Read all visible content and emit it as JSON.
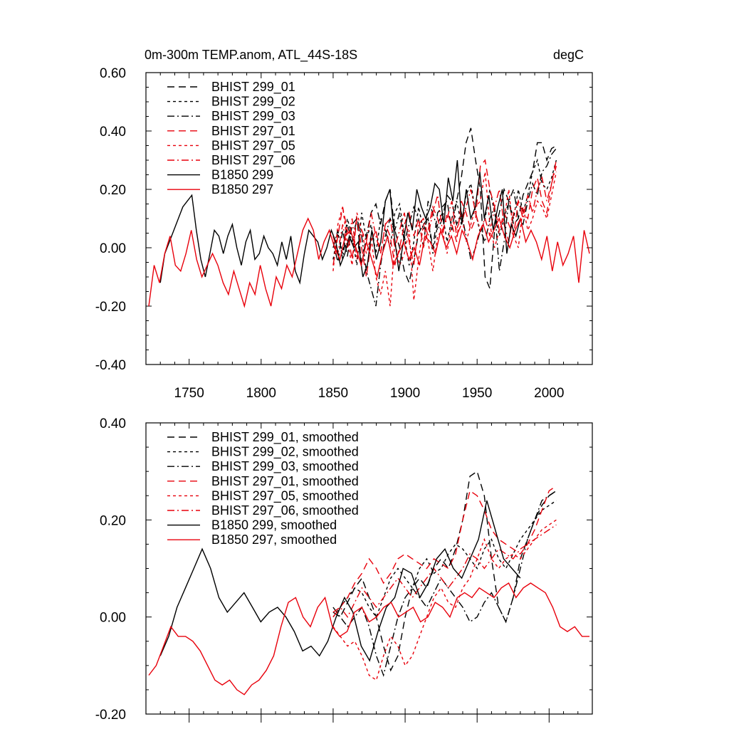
{
  "chart_data": [
    {
      "type": "line",
      "title_left": "0m-300m TEMP.anom, ATL_44S-18S",
      "title_right": "degC",
      "xlim": [
        1720,
        2030
      ],
      "ylim": [
        -0.4,
        0.6
      ],
      "yticks": [
        "0.60",
        "0.40",
        "0.20",
        "0.00",
        "-0.20",
        "-0.40"
      ],
      "xticks": [
        "1750",
        "1800",
        "1850",
        "1900",
        "1950",
        "2000"
      ],
      "series": [
        {
          "name": "BHIST 299_01",
          "color": "#000000",
          "dash": "10,6",
          "start": 1850,
          "end": 2005,
          "values": [
            0.02,
            -0.05,
            0.06,
            -0.03,
            0.08,
            0.1,
            -0.06,
            0.04,
            0.12,
            0.15,
            0.08,
            0.16,
            0.2,
            0.06,
            0.0,
            -0.08,
            -0.12,
            -0.04,
            0.05,
            0.08,
            0.1,
            0.0,
            0.12,
            0.14,
            0.16,
            0.06,
            0.16,
            0.24,
            0.36,
            0.41,
            0.3,
            0.2,
            -0.1,
            -0.14,
            0.06,
            0.12,
            0.2,
            0.16,
            0.08,
            0.1,
            0.18,
            0.22,
            0.26,
            0.36,
            0.36,
            0.3,
            0.34,
            0.35
          ]
        },
        {
          "name": "BHIST 299_02",
          "color": "#000000",
          "dash": "4,4",
          "start": 1850,
          "end": 2005,
          "values": [
            -0.04,
            0.05,
            -0.02,
            0.1,
            0.04,
            -0.06,
            0.12,
            0.03,
            0.08,
            -0.02,
            0.1,
            0.06,
            0.0,
            0.12,
            0.15,
            0.04,
            -0.06,
            0.02,
            0.14,
            0.06,
            0.1,
            -0.02,
            0.08,
            0.12,
            0.02,
            0.1,
            0.16,
            0.08,
            0.18,
            0.22,
            0.12,
            0.05,
            0.1,
            0.2,
            0.12,
            0.04,
            0.1,
            0.16,
            0.1,
            0.2,
            0.12,
            0.18,
            0.26,
            0.3,
            0.22,
            0.2,
            0.24,
            0.3
          ]
        },
        {
          "name": "BHIST 299_03",
          "color": "#000000",
          "dash": "10,4,2,4",
          "start": 1850,
          "end": 2005,
          "values": [
            0.0,
            0.06,
            -0.04,
            0.08,
            0.02,
            0.1,
            0.04,
            -0.08,
            -0.14,
            -0.2,
            -0.06,
            0.04,
            0.1,
            0.06,
            0.12,
            0.02,
            0.08,
            0.14,
            0.1,
            0.0,
            0.16,
            0.12,
            0.06,
            0.1,
            0.18,
            0.16,
            0.08,
            0.12,
            0.04,
            -0.04,
            0.0,
            0.06,
            0.02,
            0.1,
            0.14,
            -0.08,
            0.02,
            0.16,
            0.2,
            0.1,
            0.08,
            0.16,
            0.22,
            0.18,
            0.26,
            0.28,
            0.32,
            0.34
          ]
        },
        {
          "name": "BHIST 297_01",
          "color": "#e8000b",
          "dash": "10,6",
          "start": 1850,
          "end": 2005,
          "values": [
            -0.06,
            0.04,
            0.14,
            0.06,
            -0.04,
            0.1,
            0.0,
            -0.1,
            0.02,
            0.06,
            -0.02,
            0.08,
            0.04,
            -0.06,
            0.0,
            0.08,
            0.12,
            0.04,
            0.1,
            0.0,
            0.06,
            0.14,
            0.1,
            0.04,
            0.12,
            0.08,
            0.02,
            0.16,
            0.12,
            0.06,
            0.1,
            0.28,
            0.3,
            0.2,
            0.14,
            0.06,
            0.12,
            0.08,
            0.04,
            0.16,
            0.12,
            0.1,
            0.2,
            0.24,
            0.16,
            0.12,
            0.22,
            0.3
          ]
        },
        {
          "name": "BHIST 297_05",
          "color": "#e8000b",
          "dash": "4,4",
          "start": 1850,
          "end": 2005,
          "values": [
            -0.08,
            0.08,
            0.14,
            0.02,
            -0.06,
            0.12,
            0.06,
            -0.02,
            0.04,
            -0.1,
            -0.16,
            -0.08,
            -0.2,
            0.02,
            -0.06,
            -0.02,
            0.06,
            -0.18,
            -0.04,
            0.08,
            0.02,
            -0.08,
            0.04,
            0.06,
            -0.02,
            0.1,
            0.06,
            0.12,
            0.02,
            0.08,
            0.14,
            0.16,
            0.26,
            0.08,
            0.0,
            0.06,
            0.1,
            0.2,
            0.04,
            0.0,
            0.14,
            0.06,
            0.1,
            0.16,
            0.14,
            0.1,
            0.18,
            0.26
          ]
        },
        {
          "name": "BHIST 297_06",
          "color": "#e8000b",
          "dash": "10,4,2,4",
          "start": 1850,
          "end": 2005,
          "values": [
            0.04,
            -0.02,
            0.08,
            0.0,
            0.1,
            -0.04,
            0.06,
            0.02,
            0.12,
            0.04,
            -0.02,
            0.08,
            0.1,
            0.0,
            0.06,
            0.12,
            0.02,
            -0.06,
            0.08,
            0.1,
            0.04,
            0.12,
            0.18,
            0.06,
            0.1,
            0.16,
            0.04,
            0.08,
            0.14,
            0.2,
            0.12,
            0.06,
            0.1,
            0.04,
            0.14,
            0.2,
            0.08,
            0.02,
            0.12,
            0.16,
            0.1,
            0.18,
            0.12,
            0.2,
            0.24,
            0.16,
            0.22,
            0.28
          ]
        },
        {
          "name": "B1850 299",
          "color": "#000000",
          "dash": "",
          "start": 1730,
          "end": 1980,
          "values": [
            -0.12,
            -0.02,
            0.02,
            0.06,
            0.1,
            0.14,
            0.16,
            0.18,
            0.06,
            -0.04,
            -0.1,
            -0.02,
            0.06,
            0.04,
            -0.02,
            0.04,
            0.08,
            0.0,
            -0.06,
            0.02,
            0.06,
            -0.04,
            -0.02,
            0.04,
            0.0,
            -0.02,
            -0.06,
            0.02,
            -0.04,
            0.04,
            -0.08,
            -0.12,
            -0.02,
            0.06,
            0.04,
            0.02,
            -0.04,
            0.0,
            0.06,
            0.02,
            -0.06,
            -0.02,
            0.04,
            0.0,
            0.02,
            -0.1,
            -0.06,
            0.06,
            -0.04,
            0.02,
            0.16,
            0.2,
            0.04,
            -0.08,
            0.02,
            0.12,
            0.06,
            0.2,
            0.14,
            0.1,
            0.14,
            0.22,
            0.2,
            0.08,
            0.24,
            0.16,
            0.3,
            0.08,
            0.2,
            0.1,
            0.14,
            0.26,
            0.1,
            0.18,
            0.06,
            0.14,
            0.2,
            -0.02,
            0.08,
            0.04,
            0.1
          ]
        },
        {
          "name": "B1850 297",
          "color": "#e8000b",
          "dash": "",
          "start": 1722,
          "end": 2028,
          "values": [
            -0.2,
            -0.06,
            -0.12,
            -0.02,
            0.04,
            -0.06,
            -0.08,
            -0.02,
            0.06,
            -0.04,
            -0.1,
            -0.06,
            -0.02,
            -0.06,
            -0.12,
            -0.16,
            -0.08,
            -0.14,
            -0.2,
            -0.12,
            -0.16,
            -0.06,
            -0.14,
            -0.2,
            -0.1,
            -0.14,
            -0.06,
            -0.1,
            -0.02,
            0.06,
            0.1,
            0.06,
            -0.04,
            0.02,
            0.06,
            0.0,
            -0.04,
            0.04,
            0.06,
            0.0,
            -0.06,
            0.02,
            -0.04,
            -0.1,
            -0.02,
            0.04,
            -0.06,
            -0.02,
            0.02,
            -0.04,
            0.0,
            -0.06,
            0.04,
            0.02,
            -0.02,
            0.06,
            0.0,
            0.04,
            -0.02,
            0.06,
            0.02,
            -0.04,
            0.04,
            0.08,
            0.02,
            0.06,
            0.1,
            0.04,
            0.0,
            0.06,
            0.1,
            0.02,
            0.06,
            0.02,
            -0.04,
            0.04,
            -0.08,
            0.02,
            -0.06,
            -0.02,
            0.04,
            -0.12,
            0.06,
            -0.02
          ]
        }
      ]
    },
    {
      "type": "line",
      "xlim": [
        1720,
        2030
      ],
      "ylim": [
        -0.2,
        0.4
      ],
      "yticks": [
        "0.40",
        "0.20",
        "0.00",
        "-0.20"
      ],
      "series": [
        {
          "name": "BHIST 299_01, smoothed",
          "color": "#000000",
          "dash": "10,6",
          "start": 1850,
          "end": 2005,
          "values": [
            0.01,
            0.0,
            0.03,
            0.06,
            0.08,
            0.04,
            0.0,
            -0.06,
            -0.11,
            -0.08,
            0.0,
            0.06,
            0.08,
            0.06,
            0.1,
            0.12,
            0.1,
            0.14,
            0.2,
            0.29,
            0.3,
            0.25,
            0.12,
            0.02,
            -0.01,
            0.04,
            0.12,
            0.16,
            0.2,
            0.23,
            0.25,
            0.26
          ]
        },
        {
          "name": "BHIST 299_02, smoothed",
          "color": "#000000",
          "dash": "4,4",
          "start": 1850,
          "end": 2005,
          "values": [
            0.0,
            0.02,
            0.04,
            0.06,
            0.05,
            0.02,
            0.0,
            0.04,
            0.08,
            0.1,
            0.08,
            0.06,
            0.1,
            0.12,
            0.09,
            0.1,
            0.13,
            0.15,
            0.14,
            0.12,
            0.1,
            0.14,
            0.16,
            0.12,
            0.1,
            0.13,
            0.16,
            0.18,
            0.2,
            0.22,
            0.23,
            0.24
          ]
        },
        {
          "name": "BHIST 299_03, smoothed",
          "color": "#000000",
          "dash": "10,4,2,4",
          "start": 1850,
          "end": 2005,
          "values": [
            0.02,
            0.0,
            -0.02,
            0.0,
            0.02,
            -0.02,
            -0.08,
            -0.12,
            -0.06,
            0.0,
            0.04,
            0.06,
            0.04,
            0.02,
            0.05,
            0.08,
            0.06,
            0.04,
            0.02,
            -0.01,
            0.0,
            0.03,
            0.05,
            0.02,
            -0.01,
            0.04,
            0.1,
            0.16,
            0.2,
            0.24,
            0.25,
            0.26
          ]
        },
        {
          "name": "BHIST 297_01, smoothed",
          "color": "#e8000b",
          "dash": "10,6",
          "start": 1850,
          "end": 2005,
          "values": [
            0.0,
            0.02,
            0.04,
            0.07,
            0.09,
            0.12,
            0.1,
            0.07,
            0.09,
            0.12,
            0.13,
            0.12,
            0.11,
            0.1,
            0.12,
            0.11,
            0.1,
            0.13,
            0.2,
            0.26,
            0.25,
            0.22,
            0.18,
            0.16,
            0.15,
            0.14,
            0.13,
            0.15,
            0.18,
            0.22,
            0.26,
            0.27
          ]
        },
        {
          "name": "BHIST 297_05, smoothed",
          "color": "#e8000b",
          "dash": "4,4",
          "start": 1850,
          "end": 2005,
          "values": [
            -0.02,
            -0.04,
            -0.06,
            -0.05,
            -0.08,
            -0.12,
            -0.13,
            -0.08,
            -0.04,
            -0.06,
            -0.1,
            -0.08,
            -0.04,
            0.0,
            0.04,
            0.06,
            0.03,
            0.02,
            0.06,
            0.08,
            0.12,
            0.16,
            0.12,
            0.1,
            0.12,
            0.13,
            0.12,
            0.14,
            0.16,
            0.18,
            0.19,
            0.2
          ]
        },
        {
          "name": "BHIST 297_06, smoothed",
          "color": "#e8000b",
          "dash": "10,4,2,4",
          "start": 1850,
          "end": 2005,
          "values": [
            0.01,
            0.02,
            0.0,
            0.03,
            0.06,
            0.04,
            0.02,
            0.04,
            0.06,
            0.08,
            0.06,
            0.04,
            0.06,
            0.08,
            0.1,
            0.08,
            0.06,
            0.08,
            0.1,
            0.13,
            0.12,
            0.1,
            0.12,
            0.14,
            0.13,
            0.12,
            0.14,
            0.15,
            0.16,
            0.17,
            0.18,
            0.19
          ]
        },
        {
          "name": "B1850 299, smoothed",
          "color": "#000000",
          "dash": "",
          "start": 1730,
          "end": 1980,
          "values": [
            -0.08,
            -0.04,
            0.02,
            0.06,
            0.1,
            0.14,
            0.1,
            0.04,
            0.01,
            0.03,
            0.05,
            0.02,
            -0.01,
            0.01,
            0.02,
            0.0,
            -0.03,
            -0.07,
            -0.06,
            -0.08,
            -0.05,
            0.0,
            0.04,
            0.01,
            -0.06,
            -0.09,
            -0.03,
            0.02,
            0.04,
            0.1,
            0.09,
            0.04,
            0.07,
            0.12,
            0.14,
            0.1,
            0.08,
            0.12,
            0.16,
            0.24,
            0.18,
            0.12,
            0.1,
            0.08
          ]
        },
        {
          "name": "B1850 297, smoothed",
          "color": "#e8000b",
          "dash": "",
          "start": 1722,
          "end": 2028,
          "values": [
            -0.12,
            -0.1,
            -0.06,
            -0.02,
            -0.04,
            -0.04,
            -0.05,
            -0.07,
            -0.1,
            -0.13,
            -0.14,
            -0.13,
            -0.15,
            -0.16,
            -0.14,
            -0.13,
            -0.11,
            -0.08,
            -0.02,
            0.03,
            0.04,
            0.0,
            -0.02,
            0.02,
            0.04,
            -0.02,
            -0.04,
            -0.03,
            0.01,
            0.02,
            -0.01,
            0.0,
            0.02,
            0.03,
            0.0,
            0.01,
            0.02,
            -0.01,
            0.0,
            0.03,
            0.02,
            0.0,
            0.04,
            0.05,
            0.04,
            0.06,
            0.05,
            0.04,
            0.06,
            0.07,
            0.04,
            0.06,
            0.07,
            0.06,
            0.05,
            0.02,
            -0.02,
            -0.03,
            -0.02,
            -0.04,
            -0.04
          ]
        }
      ]
    }
  ]
}
